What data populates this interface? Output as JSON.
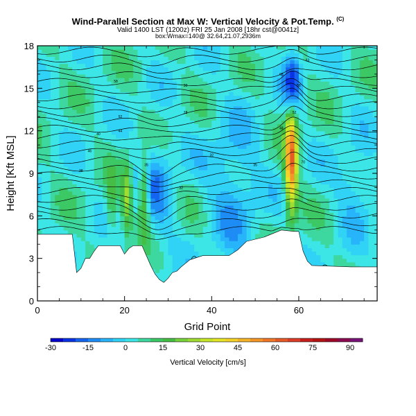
{
  "header": {
    "title": "Wind-Parallel Section at Max W: Vertical Velocity & Pot.Temp.",
    "title_mark": "(C)",
    "subtitle": "Valid 1400 LST (1200z) FRI 25 Jan 2008 [18hr cst@0041z]",
    "subtitle2": "box:Wmax=140@ 32.64,21.07,2936m"
  },
  "chart_data": {
    "type": "heatmap",
    "title": "Wind-Parallel Section at Max W: Vertical Velocity & Pot.Temp.",
    "xlabel": "Grid Point",
    "ylabel": "Height [Kft MSL]",
    "xlim": [
      0,
      78
    ],
    "ylim": [
      0,
      18
    ],
    "x_ticks": [
      0,
      20,
      40,
      60
    ],
    "y_ticks": [
      0,
      3,
      6,
      9,
      12,
      15,
      18
    ],
    "x_tick_labels": [
      "0",
      "20",
      "40",
      "60"
    ],
    "y_tick_labels": [
      "0",
      "3",
      "6",
      "9",
      "12",
      "15",
      "18"
    ],
    "colorbar": {
      "label": "Vertical Velocity [cm/s]",
      "levels": [
        -30,
        -25,
        -20,
        -15,
        -10,
        -5,
        0,
        5,
        10,
        15,
        20,
        25,
        30,
        35,
        40,
        45,
        50,
        55,
        60,
        65,
        70,
        75,
        80,
        85,
        90,
        95
      ],
      "tick_values": [
        -30,
        -15,
        0,
        15,
        30,
        45,
        60,
        75,
        90
      ],
      "tick_labels": [
        "-30",
        "-15",
        "0",
        "15",
        "30",
        "45",
        "60",
        "75",
        "90"
      ],
      "colors": [
        "#0000cc",
        "#0a33e6",
        "#1464f0",
        "#1e8cf5",
        "#28b4fa",
        "#30d2f5",
        "#3ce6e6",
        "#3cd8a0",
        "#3cc864",
        "#46be46",
        "#78d23c",
        "#a0dc32",
        "#c8e628",
        "#e6e628",
        "#f5d228",
        "#f5b428",
        "#f59628",
        "#f07828",
        "#e65a28",
        "#dc3c28",
        "#c81e1e",
        "#b41414",
        "#a00a28",
        "#8c0a50",
        "#781478"
      ]
    },
    "theta_contour_labels": [
      "58",
      "52",
      "44",
      "40",
      "46",
      "38",
      "35",
      "32",
      "32",
      "28",
      "30",
      "35",
      "48",
      "52",
      "58",
      "63",
      "65",
      "70"
    ],
    "terrain_height_kft": [
      [
        0,
        4.7
      ],
      [
        8,
        4.7
      ],
      [
        9,
        2.0
      ],
      [
        10,
        2.3
      ],
      [
        11,
        3.0
      ],
      [
        12,
        3.0
      ],
      [
        13,
        3.5
      ],
      [
        14,
        3.9
      ],
      [
        19,
        3.9
      ],
      [
        20,
        3.3
      ],
      [
        21,
        3.7
      ],
      [
        22,
        3.9
      ],
      [
        24,
        3.9
      ],
      [
        25,
        3.2
      ],
      [
        26,
        2.5
      ],
      [
        27,
        1.9
      ],
      [
        28,
        1.5
      ],
      [
        29,
        1.3
      ],
      [
        30,
        1.6
      ],
      [
        31,
        2.0
      ],
      [
        32,
        2.1
      ],
      [
        33,
        2.4
      ],
      [
        35,
        2.9
      ],
      [
        38,
        3.2
      ],
      [
        44,
        3.2
      ],
      [
        46,
        3.6
      ],
      [
        48,
        4.2
      ],
      [
        52,
        4.5
      ],
      [
        56,
        5.0
      ],
      [
        59,
        4.9
      ],
      [
        60,
        4.9
      ],
      [
        61,
        3.5
      ],
      [
        62,
        2.8
      ],
      [
        63,
        2.5
      ],
      [
        72,
        2.4
      ],
      [
        78,
        2.4
      ]
    ]
  }
}
